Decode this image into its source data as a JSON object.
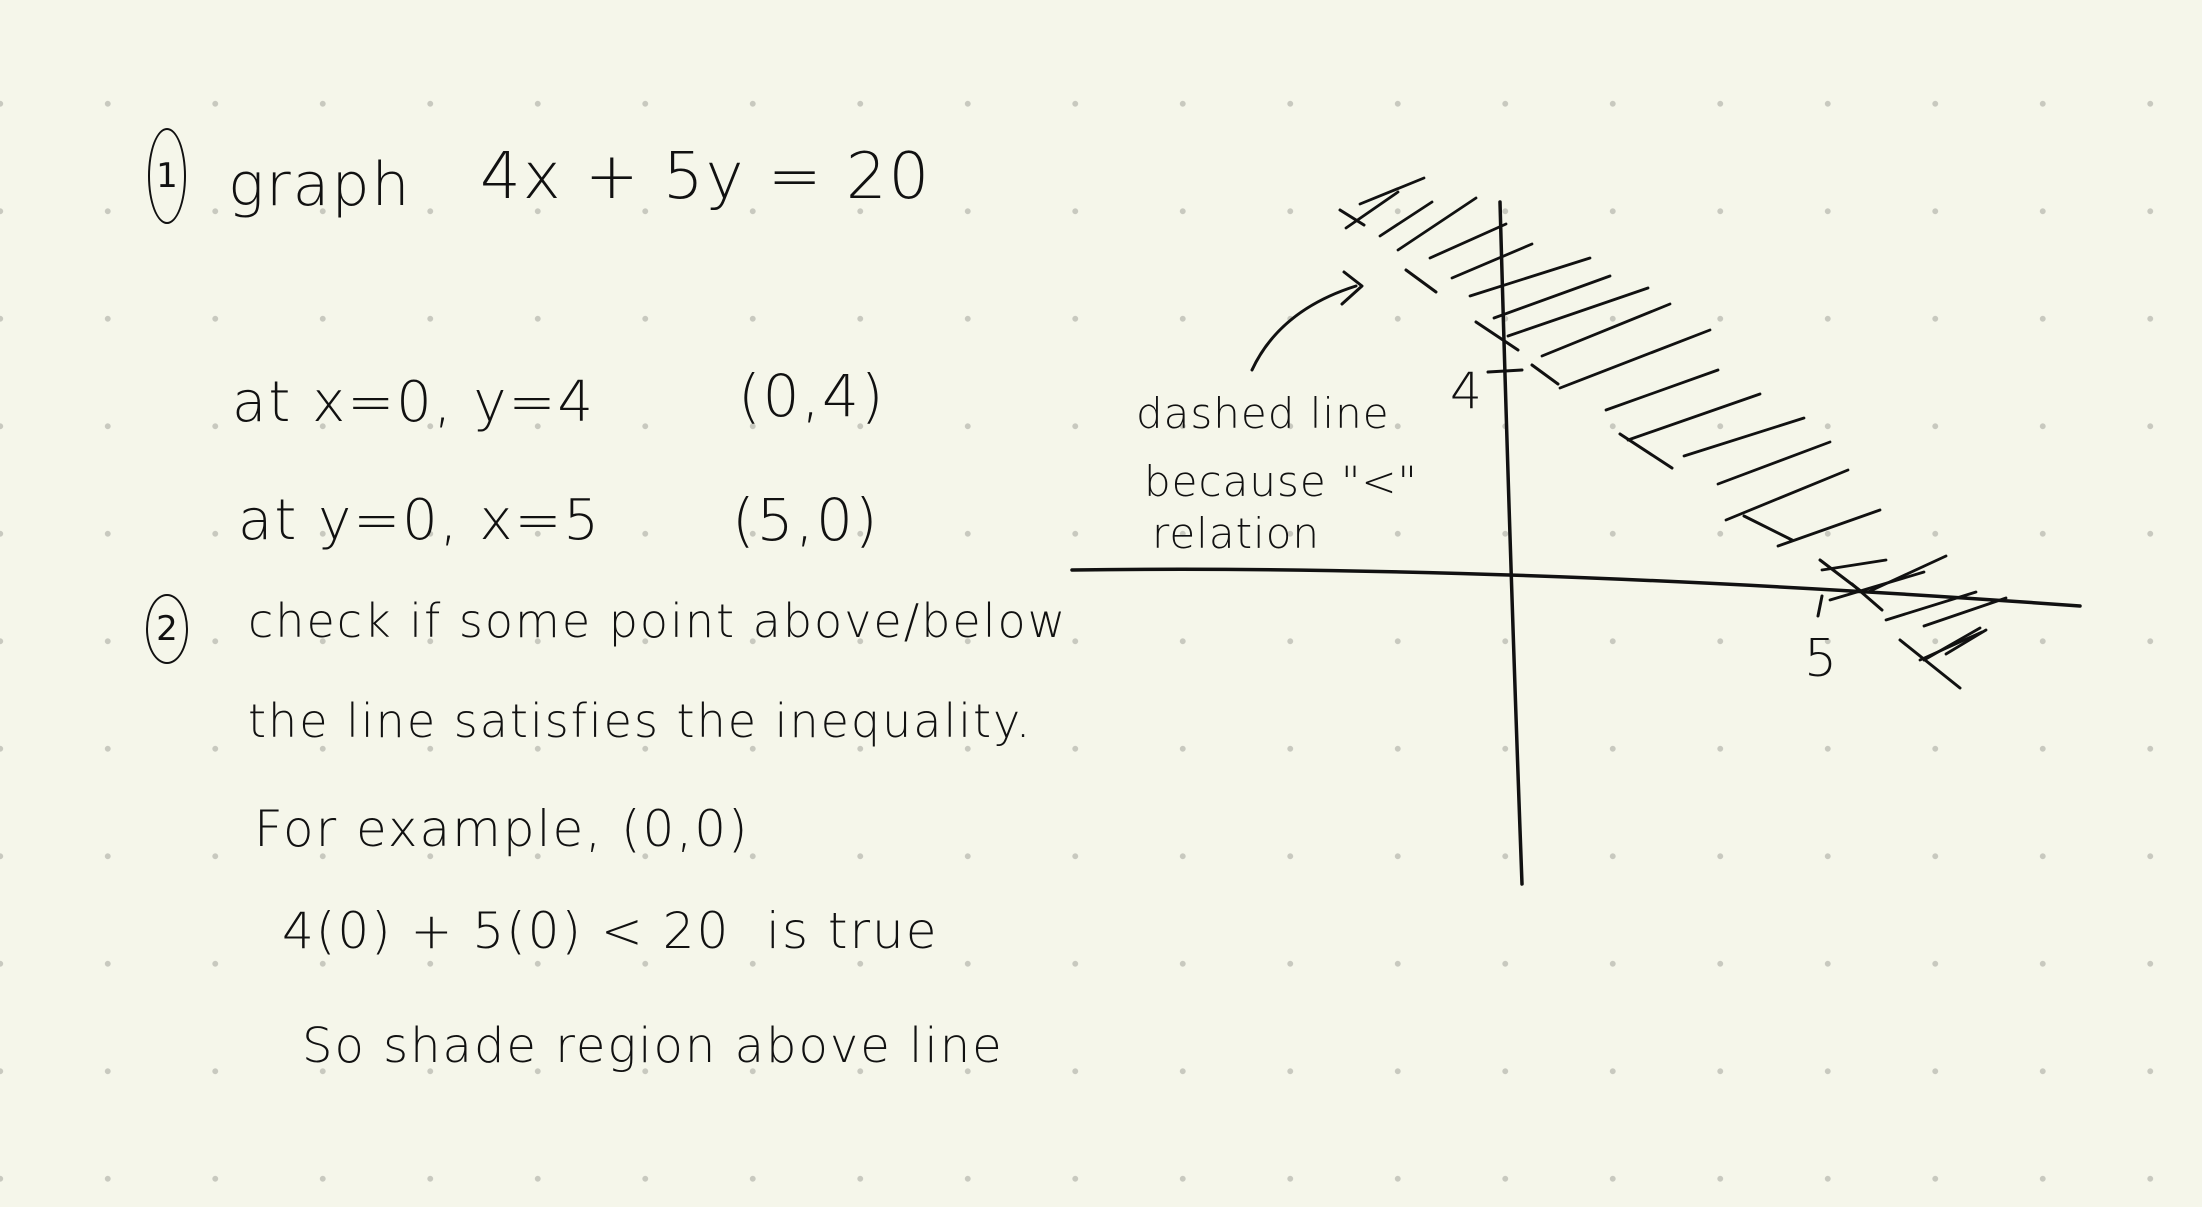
{
  "step1": {
    "number": "1",
    "title": "graph",
    "equation": "4x + 5y = 20",
    "rows": [
      {
        "text": "at x=0, y=4",
        "point": "(0,4)"
      },
      {
        "text": "at y=0, x=5",
        "point": "(5,0)"
      }
    ]
  },
  "step2": {
    "number": "2",
    "lines": [
      "check if some point above/below",
      "the line satisfies the inequality.",
      "For example, (0,0)",
      "4(0) + 5(0) < 20  is true",
      "So shade region above line"
    ]
  },
  "graph": {
    "y_intercept_label": "4",
    "x_intercept_label": "5",
    "annotation": [
      "dashed line",
      "because \"<\"",
      "relation"
    ]
  }
}
